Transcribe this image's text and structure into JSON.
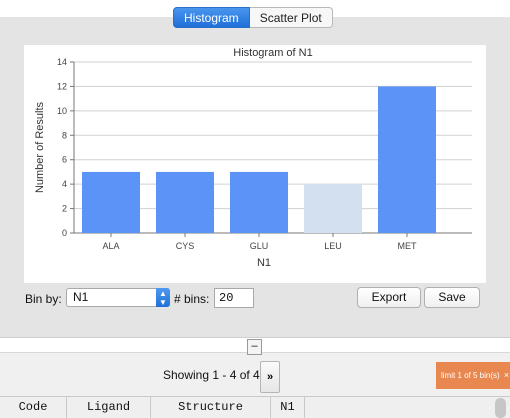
{
  "tabs": [
    {
      "label": "Histogram",
      "active": true
    },
    {
      "label": "Scatter Plot",
      "active": false
    }
  ],
  "chart_data": {
    "type": "bar",
    "title": "Histogram of N1",
    "xlabel": "N1",
    "ylabel": "Number of Results",
    "categories": [
      "ALA",
      "CYS",
      "GLU",
      "LEU",
      "MET"
    ],
    "values": [
      5,
      5,
      5,
      4,
      12
    ],
    "highlighted": [
      true,
      true,
      true,
      false,
      true
    ],
    "ylim": [
      0,
      14
    ],
    "yticks": [
      0,
      2,
      4,
      6,
      8,
      10,
      12,
      14
    ],
    "grid": true,
    "colors": {
      "bar": "#5b93f7",
      "bar_dim": "#d3e0ef",
      "grid": "#d0d0d0"
    }
  },
  "controls": {
    "bin_by_label": "Bin by:",
    "bin_by_value": "N1",
    "bins_label": "# bins:",
    "bins_value": "20",
    "export_label": "Export",
    "save_label": "Save"
  },
  "handle_label": "–",
  "pager": {
    "showing_text": "Showing 1 - 4 of 4",
    "next_label": "»",
    "limit_text": "limit 1 of 5 bin(s)",
    "limit_close": "×"
  },
  "table": {
    "headers": [
      "Code",
      "Ligand",
      "Structure",
      "N1"
    ]
  }
}
